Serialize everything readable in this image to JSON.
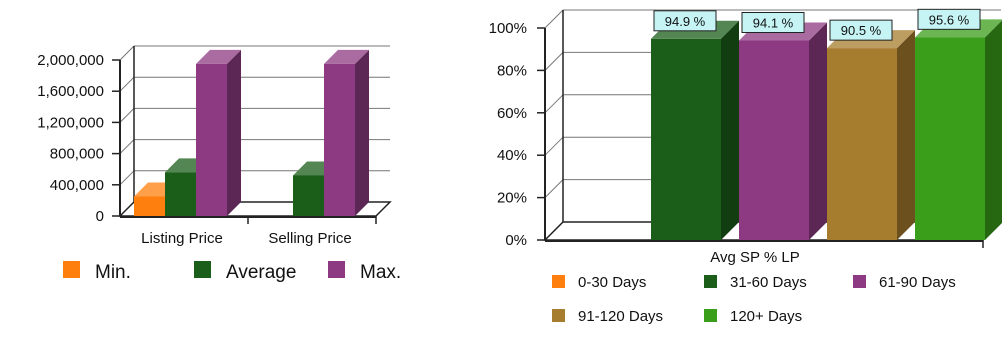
{
  "chart_data": [
    {
      "type": "bar",
      "title": "",
      "xlabel": "",
      "ylabel": "",
      "categories": [
        "Listing Price",
        "Selling Price"
      ],
      "series": [
        {
          "name": "Min.",
          "color": "#ff7f0e",
          "values": [
            250000,
            0
          ]
        },
        {
          "name": "Average",
          "color": "#1a5e1a",
          "values": [
            560000,
            520000
          ]
        },
        {
          "name": "Max.",
          "color": "#8e3a82",
          "values": [
            1950000,
            1950000
          ]
        }
      ],
      "ylim": [
        0,
        2000000
      ],
      "yticks": [
        "0",
        "400,000",
        "800,000",
        "1,200,000",
        "1,600,000",
        "2,000,000"
      ],
      "ytick_values": [
        0,
        400000,
        800000,
        1200000,
        1600000,
        2000000
      ],
      "legend_position": "bottom",
      "grid": true
    },
    {
      "type": "bar",
      "title": "",
      "xlabel": "Avg SP % LP",
      "ylabel": "",
      "categories": [
        "Avg SP % LP"
      ],
      "series": [
        {
          "name": "0-30 Days",
          "color": "#ff7f0e",
          "value": null,
          "label": ""
        },
        {
          "name": "31-60 Days",
          "color": "#1a5e1a",
          "value": 94.9,
          "label": "94.9 %"
        },
        {
          "name": "61-90 Days",
          "color": "#8e3a82",
          "value": 94.1,
          "label": "94.1 %"
        },
        {
          "name": "91-120 Days",
          "color": "#a67c2e",
          "value": 90.5,
          "label": "90.5 %"
        },
        {
          "name": "120+ Days",
          "color": "#3a9e1a",
          "value": 95.6,
          "label": "95.6 %"
        }
      ],
      "ylim": [
        0,
        100
      ],
      "yticks": [
        "0%",
        "20%",
        "40%",
        "60%",
        "80%",
        "100%"
      ],
      "ytick_values": [
        0,
        20,
        40,
        60,
        80,
        100
      ],
      "legend_position": "bottom",
      "grid": true
    }
  ]
}
